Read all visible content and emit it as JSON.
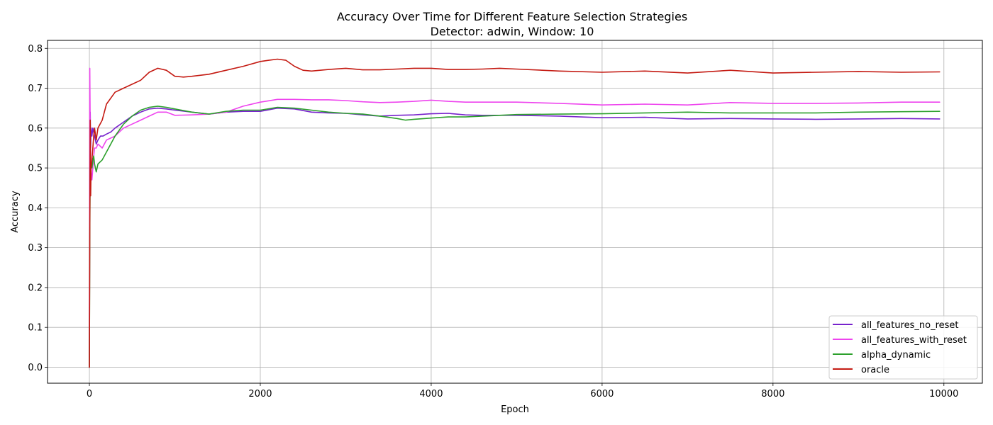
{
  "chart_data": {
    "type": "line",
    "title": "Accuracy Over Time for Different Feature Selection Strategies",
    "subtitle": "Detector: adwin, Window: 10",
    "xlabel": "Epoch",
    "ylabel": "Accuracy",
    "xlim": [
      -490,
      10450
    ],
    "ylim": [
      -0.04,
      0.82
    ],
    "xticks": [
      0,
      2000,
      4000,
      6000,
      8000,
      10000
    ],
    "xtick_labels": [
      "0",
      "2000",
      "4000",
      "6000",
      "8000",
      "10000"
    ],
    "yticks": [
      0.0,
      0.1,
      0.2,
      0.3,
      0.4,
      0.5,
      0.6,
      0.7,
      0.8
    ],
    "ytick_labels": [
      "0.0",
      "0.1",
      "0.2",
      "0.3",
      "0.4",
      "0.5",
      "0.6",
      "0.7",
      "0.8"
    ],
    "grid": true,
    "legend_position": "lower-right",
    "series": [
      {
        "name": "all_features_no_reset",
        "color": "#7722cc",
        "x": [
          0,
          5,
          10,
          15,
          20,
          30,
          40,
          50,
          60,
          80,
          100,
          130,
          160,
          200,
          250,
          300,
          400,
          500,
          600,
          700,
          800,
          900,
          1000,
          1200,
          1400,
          1600,
          1800,
          2000,
          2200,
          2400,
          2600,
          2800,
          3000,
          3200,
          3400,
          3600,
          3800,
          4000,
          4200,
          4400,
          4600,
          4800,
          5000,
          5500,
          6000,
          6500,
          7000,
          7500,
          8000,
          8500,
          9000,
          9500,
          9950
        ],
        "y": [
          0.0,
          0.48,
          0.64,
          0.55,
          0.6,
          0.58,
          0.6,
          0.59,
          0.58,
          0.56,
          0.57,
          0.58,
          0.58,
          0.585,
          0.59,
          0.6,
          0.615,
          0.63,
          0.64,
          0.648,
          0.65,
          0.648,
          0.645,
          0.64,
          0.635,
          0.64,
          0.642,
          0.642,
          0.65,
          0.648,
          0.64,
          0.638,
          0.637,
          0.633,
          0.63,
          0.632,
          0.633,
          0.636,
          0.637,
          0.633,
          0.632,
          0.632,
          0.632,
          0.63,
          0.626,
          0.627,
          0.623,
          0.624,
          0.623,
          0.622,
          0.623,
          0.624,
          0.623
        ]
      },
      {
        "name": "all_features_with_reset",
        "color": "#ee44ee",
        "x": [
          0,
          5,
          10,
          15,
          20,
          30,
          40,
          50,
          60,
          80,
          100,
          150,
          200,
          300,
          400,
          500,
          600,
          700,
          800,
          900,
          1000,
          1200,
          1400,
          1600,
          1800,
          2000,
          2200,
          2400,
          2600,
          2800,
          3000,
          3200,
          3400,
          3600,
          3800,
          4000,
          4200,
          4400,
          4600,
          4800,
          5000,
          5500,
          6000,
          6500,
          7000,
          7500,
          8000,
          8500,
          9000,
          9500,
          9950
        ],
        "y": [
          0.0,
          0.75,
          0.6,
          0.52,
          0.49,
          0.47,
          0.5,
          0.53,
          0.55,
          0.55,
          0.56,
          0.55,
          0.57,
          0.58,
          0.6,
          0.61,
          0.62,
          0.63,
          0.64,
          0.64,
          0.632,
          0.633,
          0.635,
          0.64,
          0.655,
          0.665,
          0.672,
          0.672,
          0.671,
          0.671,
          0.669,
          0.666,
          0.664,
          0.665,
          0.667,
          0.67,
          0.667,
          0.665,
          0.665,
          0.665,
          0.665,
          0.662,
          0.658,
          0.66,
          0.658,
          0.664,
          0.662,
          0.662,
          0.663,
          0.665,
          0.665
        ]
      },
      {
        "name": "alpha_dynamic",
        "color": "#2ca02c",
        "x": [
          0,
          5,
          10,
          15,
          20,
          30,
          40,
          50,
          60,
          80,
          100,
          150,
          200,
          300,
          400,
          500,
          600,
          700,
          800,
          900,
          1000,
          1200,
          1400,
          1600,
          1800,
          2000,
          2200,
          2400,
          2600,
          2800,
          3000,
          3200,
          3400,
          3600,
          3700,
          3800,
          4000,
          4200,
          4400,
          4600,
          4800,
          5000,
          5500,
          6000,
          6500,
          7000,
          7500,
          8000,
          8500,
          9000,
          9500,
          9950
        ],
        "y": [
          0.0,
          0.33,
          0.5,
          0.48,
          0.51,
          0.5,
          0.52,
          0.53,
          0.51,
          0.49,
          0.51,
          0.52,
          0.54,
          0.58,
          0.61,
          0.63,
          0.645,
          0.652,
          0.655,
          0.652,
          0.648,
          0.64,
          0.635,
          0.642,
          0.645,
          0.645,
          0.652,
          0.65,
          0.645,
          0.64,
          0.637,
          0.635,
          0.63,
          0.624,
          0.62,
          0.622,
          0.625,
          0.628,
          0.628,
          0.63,
          0.632,
          0.634,
          0.635,
          0.636,
          0.638,
          0.64,
          0.638,
          0.638,
          0.638,
          0.64,
          0.641,
          0.642
        ]
      },
      {
        "name": "oracle",
        "color": "#c41a12",
        "x": [
          0,
          5,
          10,
          15,
          20,
          30,
          40,
          50,
          60,
          80,
          100,
          150,
          200,
          300,
          400,
          500,
          600,
          700,
          800,
          900,
          1000,
          1100,
          1200,
          1400,
          1600,
          1800,
          2000,
          2100,
          2200,
          2300,
          2400,
          2500,
          2600,
          2800,
          3000,
          3200,
          3400,
          3600,
          3800,
          4000,
          4200,
          4400,
          4600,
          4800,
          5000,
          5500,
          6000,
          6500,
          7000,
          7500,
          8000,
          8500,
          9000,
          9500,
          9950
        ],
        "y": [
          0.0,
          0.35,
          0.62,
          0.43,
          0.5,
          0.52,
          0.55,
          0.58,
          0.6,
          0.57,
          0.6,
          0.62,
          0.66,
          0.69,
          0.7,
          0.71,
          0.72,
          0.74,
          0.75,
          0.745,
          0.73,
          0.728,
          0.73,
          0.735,
          0.745,
          0.755,
          0.767,
          0.77,
          0.773,
          0.77,
          0.755,
          0.745,
          0.743,
          0.747,
          0.75,
          0.746,
          0.746,
          0.748,
          0.75,
          0.75,
          0.747,
          0.747,
          0.748,
          0.75,
          0.748,
          0.743,
          0.74,
          0.743,
          0.738,
          0.745,
          0.738,
          0.74,
          0.742,
          0.74,
          0.741
        ]
      }
    ]
  }
}
